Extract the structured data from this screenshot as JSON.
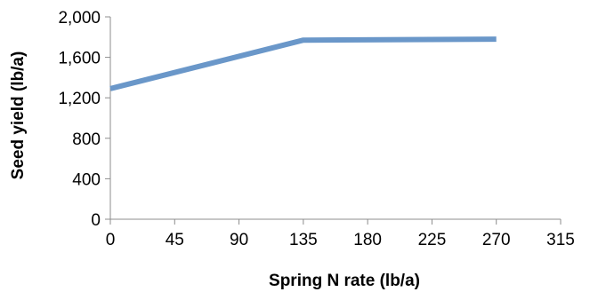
{
  "chart_data": {
    "type": "line",
    "title": "",
    "xlabel": "Spring N rate (lb/a)",
    "ylabel": "Seed yield (lb/a)",
    "xlim": [
      0,
      315
    ],
    "ylim": [
      0,
      2000
    ],
    "xticks": [
      0,
      45,
      90,
      135,
      180,
      225,
      270,
      315
    ],
    "xtick_labels": [
      "0",
      "45",
      "90",
      "135",
      "180",
      "225",
      "270",
      "315"
    ],
    "yticks": [
      0,
      400,
      800,
      1200,
      1600,
      2000
    ],
    "ytick_labels": [
      "0",
      "400",
      "800",
      "1,200",
      "1,600",
      "2,000"
    ],
    "grid": false,
    "legend": "none",
    "series": [
      {
        "color": "#6a97c9",
        "x": [
          0,
          135,
          270
        ],
        "y": [
          1290,
          1770,
          1780
        ]
      }
    ]
  }
}
